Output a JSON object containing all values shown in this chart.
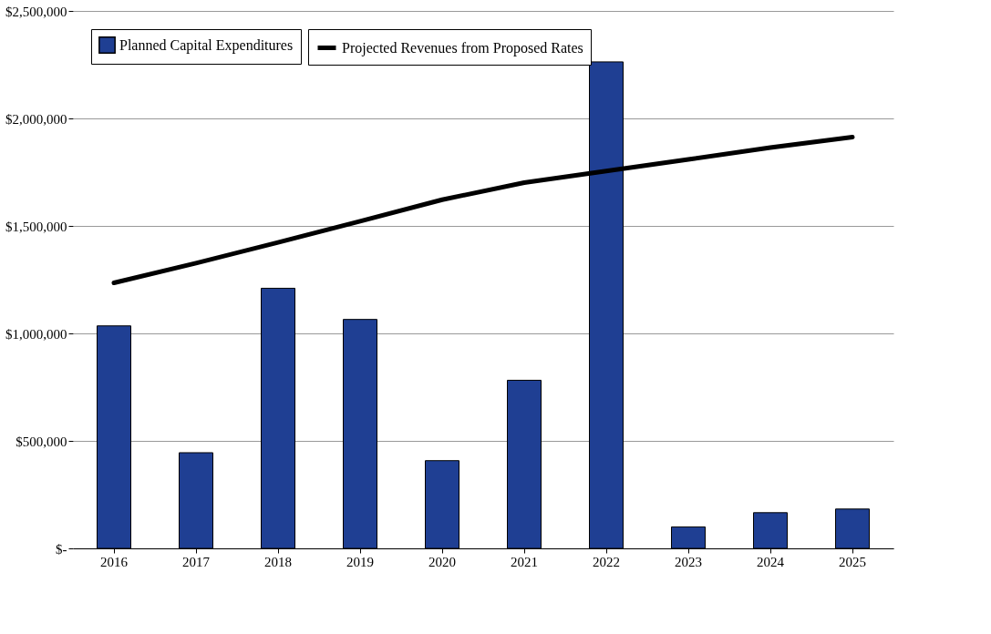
{
  "chart_data": {
    "type": "bar",
    "categories": [
      "2016",
      "2017",
      "2018",
      "2019",
      "2020",
      "2021",
      "2022",
      "2023",
      "2024",
      "2025"
    ],
    "series": [
      {
        "name": "Planned Capital Expenditures",
        "color": "#1f3f93",
        "values": [
          1035000,
          445000,
          1210000,
          1065000,
          408000,
          782000,
          2263000,
          100000,
          166000,
          183000
        ]
      },
      {
        "name": "Projected Revenues from Proposed Rates",
        "type": "line",
        "color": "#000000",
        "values": [
          1235000,
          1327000,
          1423000,
          1522000,
          1622000,
          1701000,
          1755000,
          1809000,
          1864000,
          1913000
        ]
      }
    ],
    "ylim": [
      0,
      2500000
    ],
    "yticks": [
      {
        "value": 0,
        "label": "$-"
      },
      {
        "value": 500000,
        "label": "$500,000"
      },
      {
        "value": 1000000,
        "label": "$1,000,000"
      },
      {
        "value": 1500000,
        "label": "$1,500,000"
      },
      {
        "value": 2000000,
        "label": "$2,000,000"
      },
      {
        "value": 2500000,
        "label": "$2,500,000"
      }
    ],
    "grid": "y",
    "legend": "top left",
    "line_style": "solid",
    "marker": "none"
  }
}
